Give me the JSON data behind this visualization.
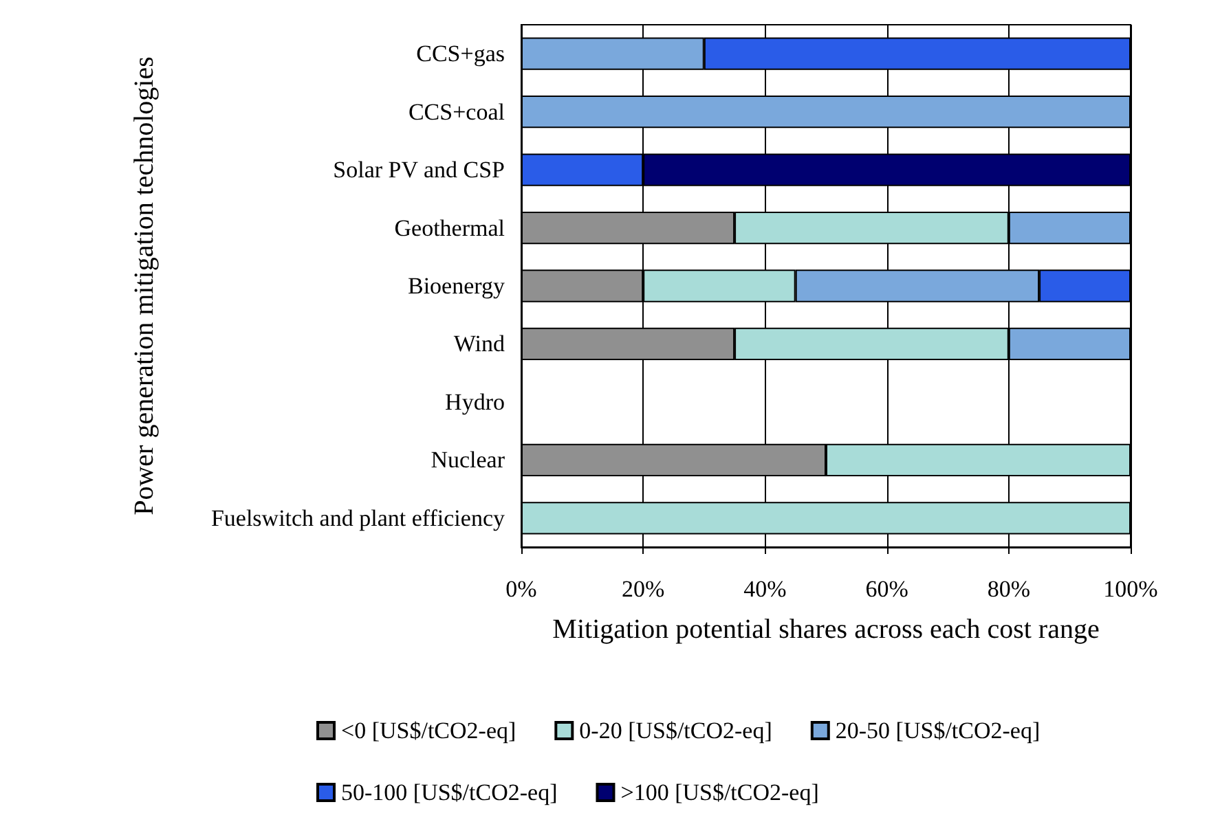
{
  "chart_data": {
    "type": "bar",
    "orientation": "horizontal",
    "stacked": true,
    "xlabel": "Mitigation potential shares across each cost range",
    "ylabel": "Power generation mitigation technologies",
    "categories": [
      "CCS+gas",
      "CCS+coal",
      "Solar PV and CSP",
      "Geothermal",
      "Bioenergy",
      "Wind",
      "Hydro",
      "Nuclear",
      "Fuelswitch and plant efficiency"
    ],
    "series": [
      {
        "name": "<0 [US$/tCO2-eq]",
        "color": "#909090",
        "values": [
          null,
          null,
          null,
          35,
          20,
          35,
          null,
          50,
          null
        ]
      },
      {
        "name": "0-20 [US$/tCO2-eq]",
        "color": "#a8dcd8",
        "values": [
          null,
          null,
          null,
          45,
          25,
          45,
          null,
          50,
          100
        ]
      },
      {
        "name": "20-50 [US$/tCO2-eq]",
        "color": "#7aa8dc",
        "values": [
          30,
          100,
          null,
          20,
          40,
          20,
          null,
          null,
          null
        ]
      },
      {
        "name": "50-100 [US$/tCO2-eq]",
        "color": "#2a5ce8",
        "values": [
          70,
          null,
          20,
          null,
          15,
          null,
          null,
          null,
          null
        ]
      },
      {
        "name": ">100 [US$/tCO2-eq]",
        "color": "#000070",
        "values": [
          null,
          null,
          80,
          null,
          null,
          null,
          null,
          null,
          null
        ]
      }
    ],
    "xlim": [
      0,
      100
    ],
    "xticks": [
      {
        "value": 0,
        "label": "0%"
      },
      {
        "value": 20,
        "label": "20%"
      },
      {
        "value": 40,
        "label": "40%"
      },
      {
        "value": 60,
        "label": "60%"
      },
      {
        "value": 80,
        "label": "80%"
      },
      {
        "value": 100,
        "label": "100%"
      }
    ],
    "grid": "x",
    "legend": "bottom"
  }
}
